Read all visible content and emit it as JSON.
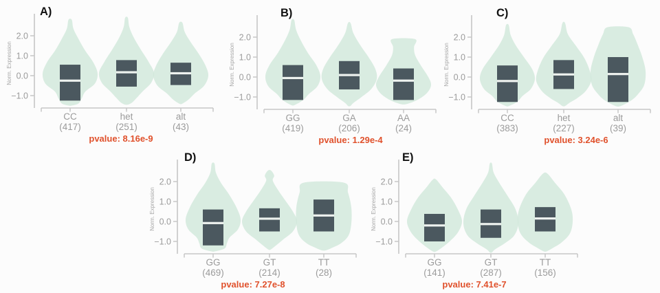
{
  "figure": {
    "ylabel": "Norm. Expression",
    "ytick_labels": [
      "2.0",
      "1.0",
      "0.0",
      "−1.0"
    ],
    "ytick_values": [
      2.0,
      1.0,
      0.0,
      -1.0
    ],
    "colors": {
      "background": "#fcfcfc",
      "violin_fill": "#cfe7da",
      "box_fill": "#4b585f",
      "median_line": "#eef2ef",
      "axis": "#c6c6c6",
      "tick_label": "#9b9b9b",
      "category_label": "#9b9b9b",
      "pvalue": "#e0512c",
      "panel_label": "#111111"
    }
  },
  "chart_data": [
    {
      "type": "violin",
      "panel_label": "A)",
      "ylabel": "Norm. Expression",
      "yticks": [
        2.0,
        1.0,
        0.0,
        -1.0
      ],
      "ylim": [
        -1.6,
        3.0
      ],
      "pvalue": "pvalue: 8.16e-9",
      "categories": [
        {
          "label": "CC",
          "count": "(417)",
          "n": 417,
          "box": {
            "low": -1.25,
            "high": 0.55,
            "median": -0.25
          },
          "violin": [
            [
              2.8,
              0.06
            ],
            [
              2.35,
              0.12
            ],
            [
              1.85,
              0.3
            ],
            [
              1.25,
              0.55
            ],
            [
              0.65,
              0.85
            ],
            [
              0.1,
              1.0
            ],
            [
              -0.4,
              0.9
            ],
            [
              -0.8,
              0.55
            ],
            [
              -1.15,
              0.42
            ],
            [
              -1.4,
              0.3
            ],
            [
              -1.5,
              0.05
            ]
          ]
        },
        {
          "label": "het",
          "count": "(251)",
          "n": 251,
          "box": {
            "low": -0.55,
            "high": 0.78,
            "median": 0.17
          },
          "violin": [
            [
              2.9,
              0.05
            ],
            [
              2.45,
              0.1
            ],
            [
              1.95,
              0.25
            ],
            [
              1.35,
              0.5
            ],
            [
              0.7,
              0.8
            ],
            [
              0.15,
              1.0
            ],
            [
              -0.35,
              0.9
            ],
            [
              -0.8,
              0.58
            ],
            [
              -1.1,
              0.38
            ],
            [
              -1.35,
              0.2
            ],
            [
              -1.45,
              0.05
            ]
          ]
        },
        {
          "label": "alt",
          "count": "(43)",
          "n": 43,
          "box": {
            "low": -0.47,
            "high": 0.65,
            "median": 0.12
          },
          "violin": [
            [
              2.65,
              0.06
            ],
            [
              2.2,
              0.14
            ],
            [
              1.7,
              0.35
            ],
            [
              1.1,
              0.65
            ],
            [
              0.5,
              0.9
            ],
            [
              0.0,
              1.0
            ],
            [
              -0.5,
              0.85
            ],
            [
              -0.9,
              0.5
            ],
            [
              -1.2,
              0.28
            ],
            [
              -1.4,
              0.06
            ]
          ]
        }
      ]
    },
    {
      "type": "violin",
      "panel_label": "B)",
      "ylabel": "Norm. Expression",
      "yticks": [
        2.0,
        1.0,
        0.0,
        -1.0
      ],
      "ylim": [
        -1.6,
        3.0
      ],
      "pvalue": "pvalue: 1.29e-4",
      "categories": [
        {
          "label": "GG",
          "count": "(419)",
          "n": 419,
          "box": {
            "low": -1.15,
            "high": 0.6,
            "median": -0.05
          },
          "violin": [
            [
              2.85,
              0.05
            ],
            [
              2.35,
              0.12
            ],
            [
              1.8,
              0.3
            ],
            [
              1.2,
              0.55
            ],
            [
              0.6,
              0.85
            ],
            [
              0.05,
              1.0
            ],
            [
              -0.45,
              0.9
            ],
            [
              -0.85,
              0.58
            ],
            [
              -1.15,
              0.38
            ],
            [
              -1.4,
              0.07
            ]
          ]
        },
        {
          "label": "GA",
          "count": "(206)",
          "n": 206,
          "box": {
            "low": -0.62,
            "high": 0.8,
            "median": 0.1
          },
          "violin": [
            [
              2.7,
              0.05
            ],
            [
              2.2,
              0.15
            ],
            [
              1.6,
              0.4
            ],
            [
              1.0,
              0.7
            ],
            [
              0.4,
              0.95
            ],
            [
              -0.1,
              1.0
            ],
            [
              -0.6,
              0.8
            ],
            [
              -1.0,
              0.45
            ],
            [
              -1.3,
              0.15
            ],
            [
              -1.45,
              0.04
            ]
          ]
        },
        {
          "label": "AA",
          "count": "(24)",
          "n": 24,
          "box": {
            "low": -1.15,
            "high": 0.43,
            "median": -0.18
          },
          "violin": [
            [
              1.9,
              0.42
            ],
            [
              1.5,
              0.38
            ],
            [
              1.1,
              0.42
            ],
            [
              0.6,
              0.62
            ],
            [
              0.0,
              0.9
            ],
            [
              -0.4,
              1.0
            ],
            [
              -0.8,
              0.85
            ],
            [
              -1.15,
              0.5
            ],
            [
              -1.35,
              0.12
            ]
          ]
        }
      ]
    },
    {
      "type": "violin",
      "panel_label": "C)",
      "ylabel": "Norm. Expression",
      "yticks": [
        2.0,
        1.0,
        0.0,
        -1.0
      ],
      "ylim": [
        -1.6,
        3.0
      ],
      "pvalue": "pvalue: 3.24e-6",
      "categories": [
        {
          "label": "CC",
          "count": "(383)",
          "n": 383,
          "box": {
            "low": -1.25,
            "high": 0.58,
            "median": -0.2
          },
          "violin": [
            [
              2.6,
              0.05
            ],
            [
              2.1,
              0.12
            ],
            [
              1.6,
              0.3
            ],
            [
              1.0,
              0.6
            ],
            [
              0.4,
              0.9
            ],
            [
              -0.1,
              1.0
            ],
            [
              -0.6,
              0.85
            ],
            [
              -0.95,
              0.55
            ],
            [
              -1.25,
              0.35
            ],
            [
              -1.45,
              0.06
            ]
          ]
        },
        {
          "label": "het",
          "count": "(227)",
          "n": 227,
          "box": {
            "low": -0.6,
            "high": 0.85,
            "median": 0.13
          },
          "violin": [
            [
              2.7,
              0.05
            ],
            [
              2.15,
              0.15
            ],
            [
              1.55,
              0.45
            ],
            [
              0.95,
              0.75
            ],
            [
              0.3,
              0.95
            ],
            [
              -0.2,
              1.0
            ],
            [
              -0.7,
              0.8
            ],
            [
              -1.05,
              0.5
            ],
            [
              -1.3,
              0.2
            ],
            [
              -1.45,
              0.05
            ]
          ]
        },
        {
          "label": "alt",
          "count": "(39)",
          "n": 39,
          "box": {
            "low": -1.25,
            "high": 1.0,
            "median": 0.15
          },
          "violin": [
            [
              2.5,
              0.38
            ],
            [
              2.15,
              0.55
            ],
            [
              1.6,
              0.72
            ],
            [
              1.0,
              0.88
            ],
            [
              0.3,
              1.0
            ],
            [
              -0.4,
              0.95
            ],
            [
              -0.9,
              0.7
            ],
            [
              -1.2,
              0.45
            ],
            [
              -1.45,
              0.1
            ]
          ]
        }
      ]
    },
    {
      "type": "violin",
      "panel_label": "D)",
      "ylabel": "Norm. Expression",
      "yticks": [
        2.0,
        1.0,
        0.0,
        -1.0
      ],
      "ylim": [
        -1.6,
        3.0
      ],
      "pvalue": "pvalue: 7.27e-8",
      "categories": [
        {
          "label": "GG",
          "count": "(469)",
          "n": 469,
          "box": {
            "low": -1.2,
            "high": 0.6,
            "median": -0.08
          },
          "violin": [
            [
              2.9,
              0.05
            ],
            [
              2.45,
              0.1
            ],
            [
              1.95,
              0.28
            ],
            [
              1.35,
              0.58
            ],
            [
              0.7,
              0.85
            ],
            [
              0.1,
              1.0
            ],
            [
              -0.4,
              0.9
            ],
            [
              -0.8,
              0.6
            ],
            [
              -1.1,
              0.5
            ],
            [
              -1.35,
              0.42
            ],
            [
              -1.5,
              0.06
            ]
          ]
        },
        {
          "label": "GT",
          "count": "(214)",
          "n": 214,
          "box": {
            "low": -0.5,
            "high": 0.66,
            "median": 0.14
          },
          "violin": [
            [
              2.55,
              0.06
            ],
            [
              2.3,
              0.17
            ],
            [
              2.05,
              0.12
            ],
            [
              1.6,
              0.3
            ],
            [
              1.1,
              0.55
            ],
            [
              0.5,
              0.85
            ],
            [
              0.0,
              1.0
            ],
            [
              -0.5,
              0.85
            ],
            [
              -0.9,
              0.5
            ],
            [
              -1.2,
              0.24
            ],
            [
              -1.4,
              0.05
            ]
          ]
        },
        {
          "label": "TT",
          "count": "(28)",
          "n": 28,
          "box": {
            "low": -0.5,
            "high": 1.1,
            "median": 0.3
          },
          "violin": [
            [
              1.95,
              0.72
            ],
            [
              1.45,
              0.88
            ],
            [
              0.7,
              1.0
            ],
            [
              -0.1,
              1.0
            ],
            [
              -0.7,
              0.9
            ],
            [
              -1.1,
              0.62
            ],
            [
              -1.35,
              0.25
            ],
            [
              -1.45,
              0.06
            ]
          ]
        }
      ]
    },
    {
      "type": "violin",
      "panel_label": "E)",
      "ylabel": "Norm. Expression",
      "yticks": [
        2.0,
        1.0,
        0.0,
        -1.0
      ],
      "ylim": [
        -1.6,
        3.0
      ],
      "pvalue": "pvalue: 7.41e-7",
      "categories": [
        {
          "label": "GG",
          "count": "(141)",
          "n": 141,
          "box": {
            "low": -1.0,
            "high": 0.38,
            "median": -0.2
          },
          "violin": [
            [
              2.1,
              0.06
            ],
            [
              1.7,
              0.3
            ],
            [
              1.2,
              0.6
            ],
            [
              0.6,
              0.85
            ],
            [
              0.0,
              1.0
            ],
            [
              -0.55,
              0.85
            ],
            [
              -1.0,
              0.55
            ],
            [
              -1.3,
              0.28
            ],
            [
              -1.5,
              0.06
            ]
          ]
        },
        {
          "label": "GT",
          "count": "(287)",
          "n": 287,
          "box": {
            "low": -0.82,
            "high": 0.6,
            "median": -0.13
          },
          "violin": [
            [
              2.9,
              0.04
            ],
            [
              2.45,
              0.1
            ],
            [
              1.95,
              0.3
            ],
            [
              1.3,
              0.6
            ],
            [
              0.6,
              0.9
            ],
            [
              -0.1,
              1.0
            ],
            [
              -0.7,
              0.85
            ],
            [
              -1.1,
              0.5
            ],
            [
              -1.4,
              0.15
            ],
            [
              -1.55,
              0.04
            ]
          ]
        },
        {
          "label": "TT",
          "count": "(156)",
          "n": 156,
          "box": {
            "low": -0.5,
            "high": 0.72,
            "median": 0.15
          },
          "violin": [
            [
              2.4,
              0.08
            ],
            [
              1.95,
              0.35
            ],
            [
              1.35,
              0.7
            ],
            [
              0.6,
              0.95
            ],
            [
              0.0,
              1.0
            ],
            [
              -0.6,
              0.9
            ],
            [
              -1.05,
              0.6
            ],
            [
              -1.35,
              0.25
            ],
            [
              -1.5,
              0.05
            ]
          ]
        }
      ]
    }
  ]
}
